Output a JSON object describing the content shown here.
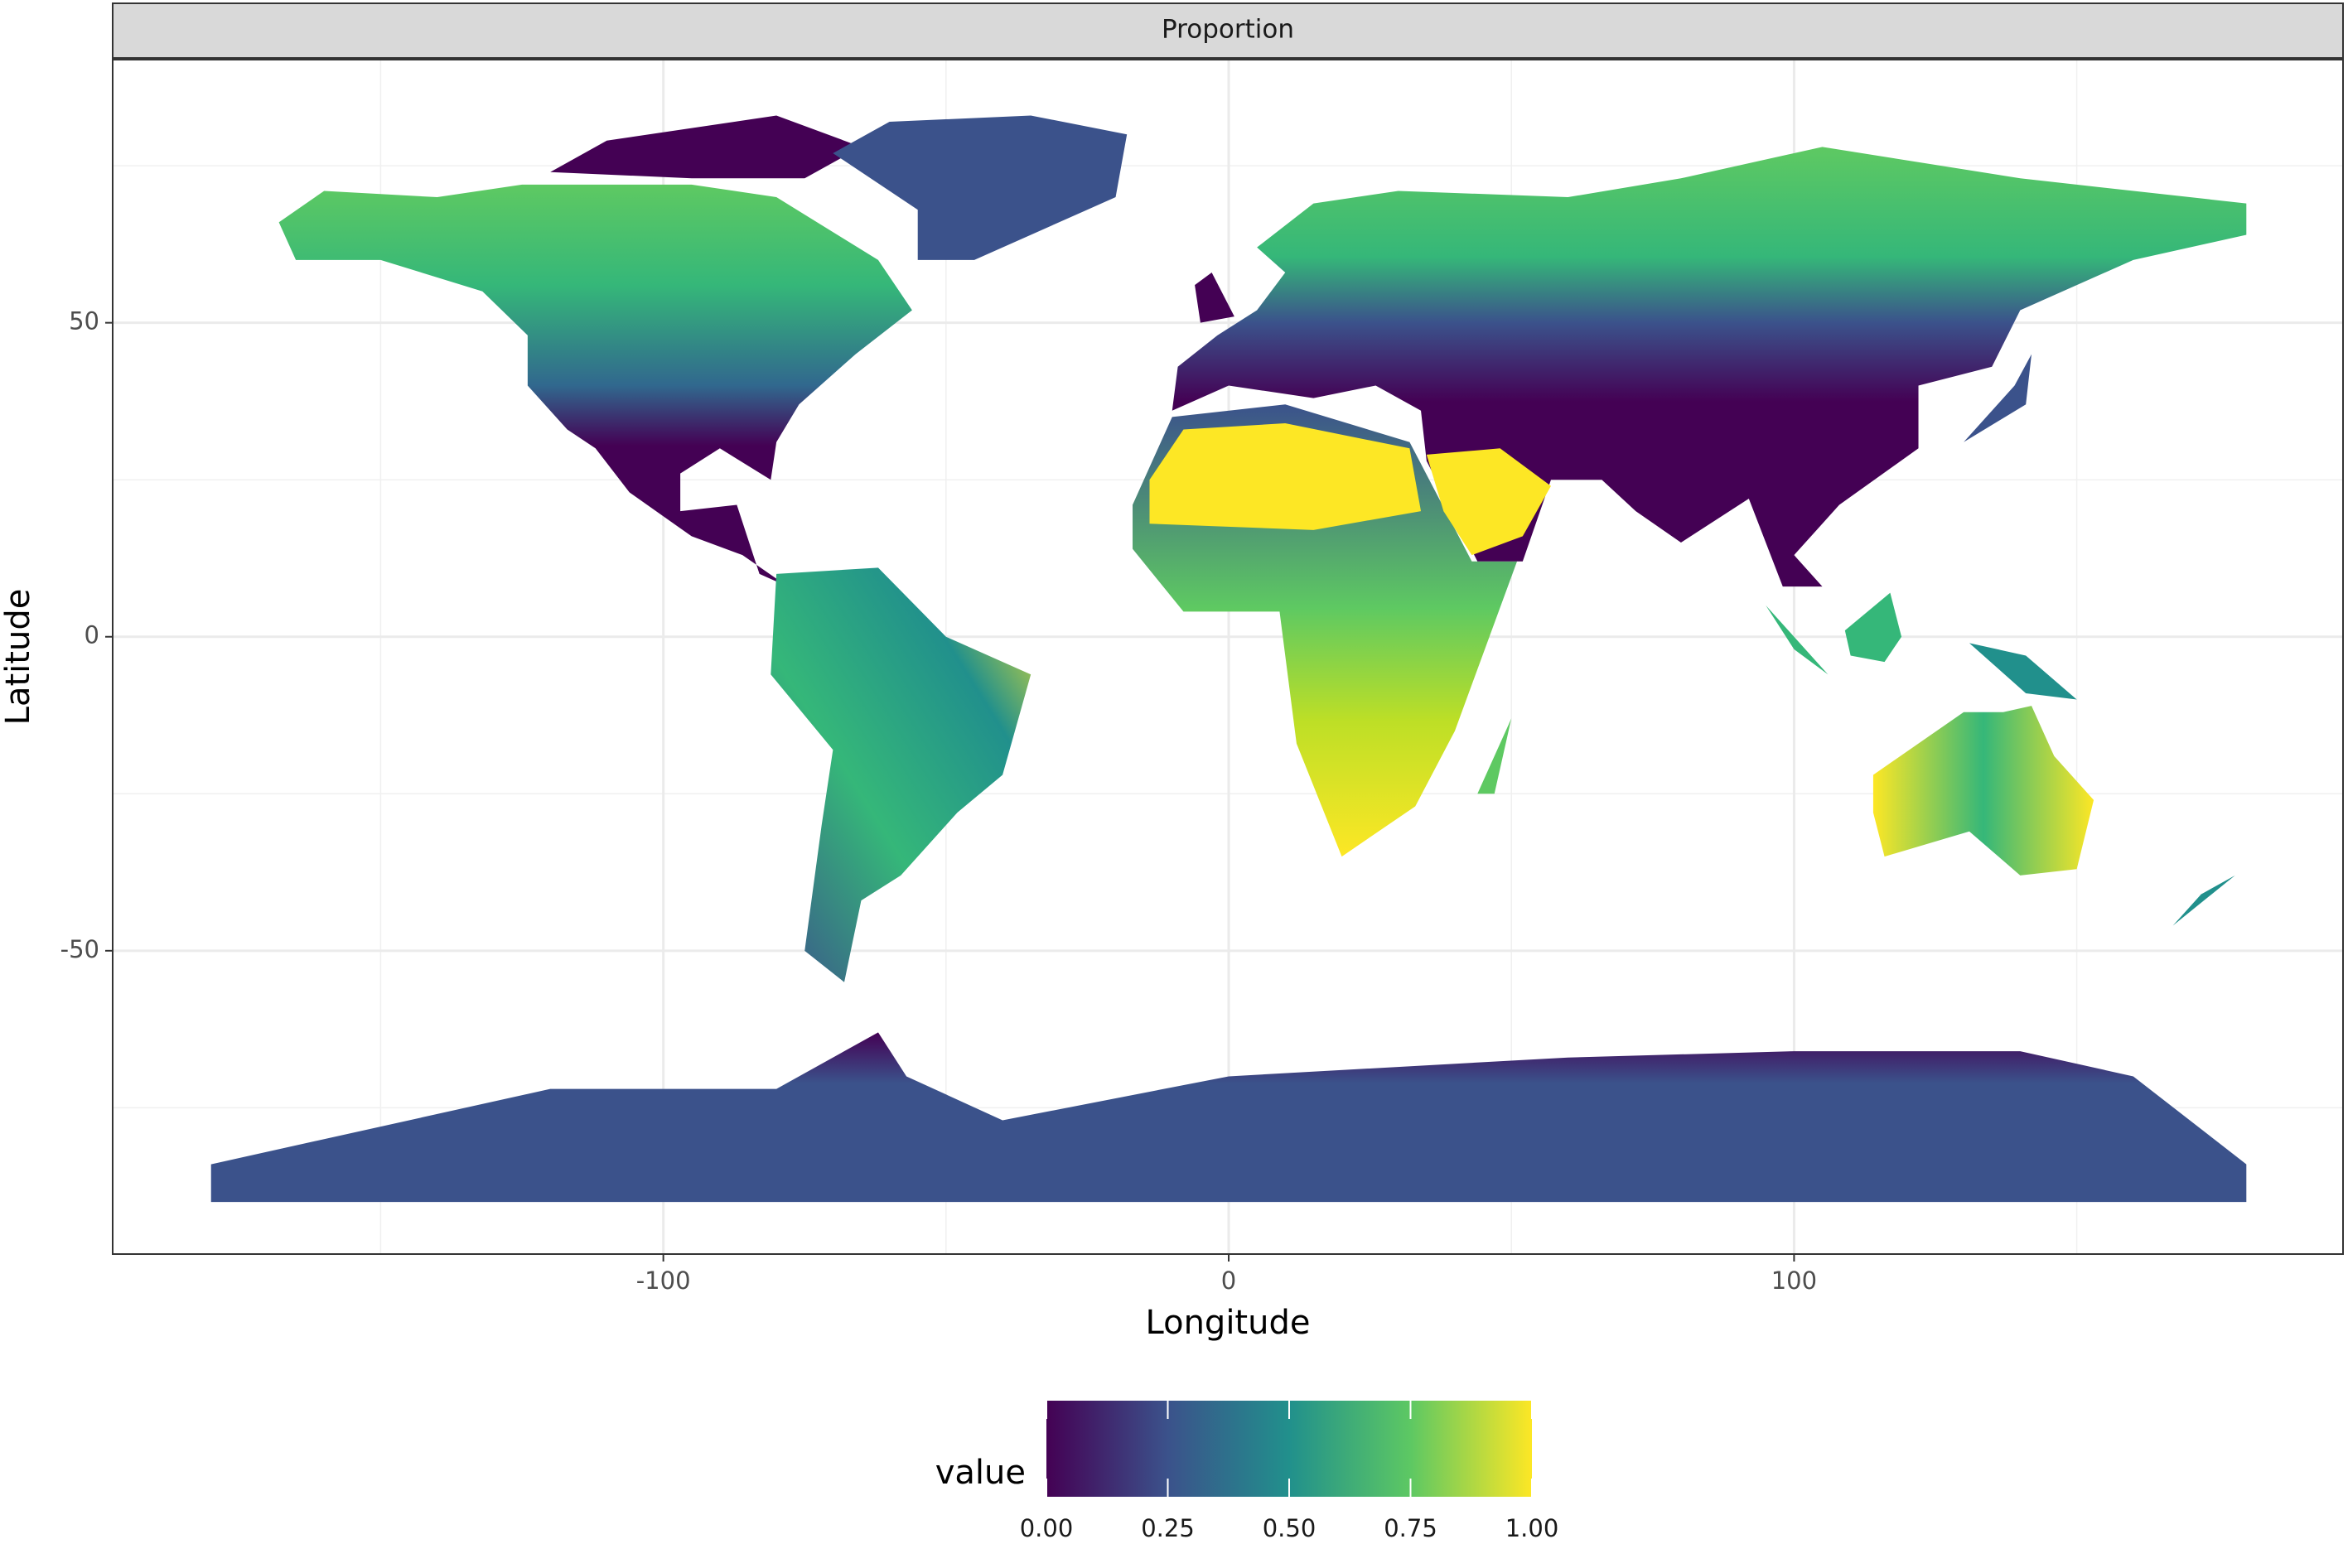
{
  "chart_data": {
    "type": "raster-map",
    "facet": "Proportion",
    "xlabel": "Longitude",
    "ylabel": "Latitude",
    "xlim": [
      -197.4,
      197.1
    ],
    "ylim": [
      -98.3,
      91.9
    ],
    "xticks": [
      -100,
      0,
      100
    ],
    "yticks": [
      -50,
      0,
      50
    ],
    "grid": true,
    "legend": {
      "title": "value",
      "position": "bottom",
      "limits": [
        0,
        1
      ],
      "ticks": [
        {
          "value": 0,
          "label": "0.00"
        },
        {
          "value": 0.25,
          "label": "0.25"
        },
        {
          "value": 0.5,
          "label": "0.50"
        },
        {
          "value": 0.75,
          "label": "0.75"
        },
        {
          "value": 1,
          "label": "1.00"
        }
      ],
      "colors": [
        "#440154",
        "#3b528b",
        "#21908c",
        "#5dc863",
        "#fde725"
      ]
    }
  }
}
